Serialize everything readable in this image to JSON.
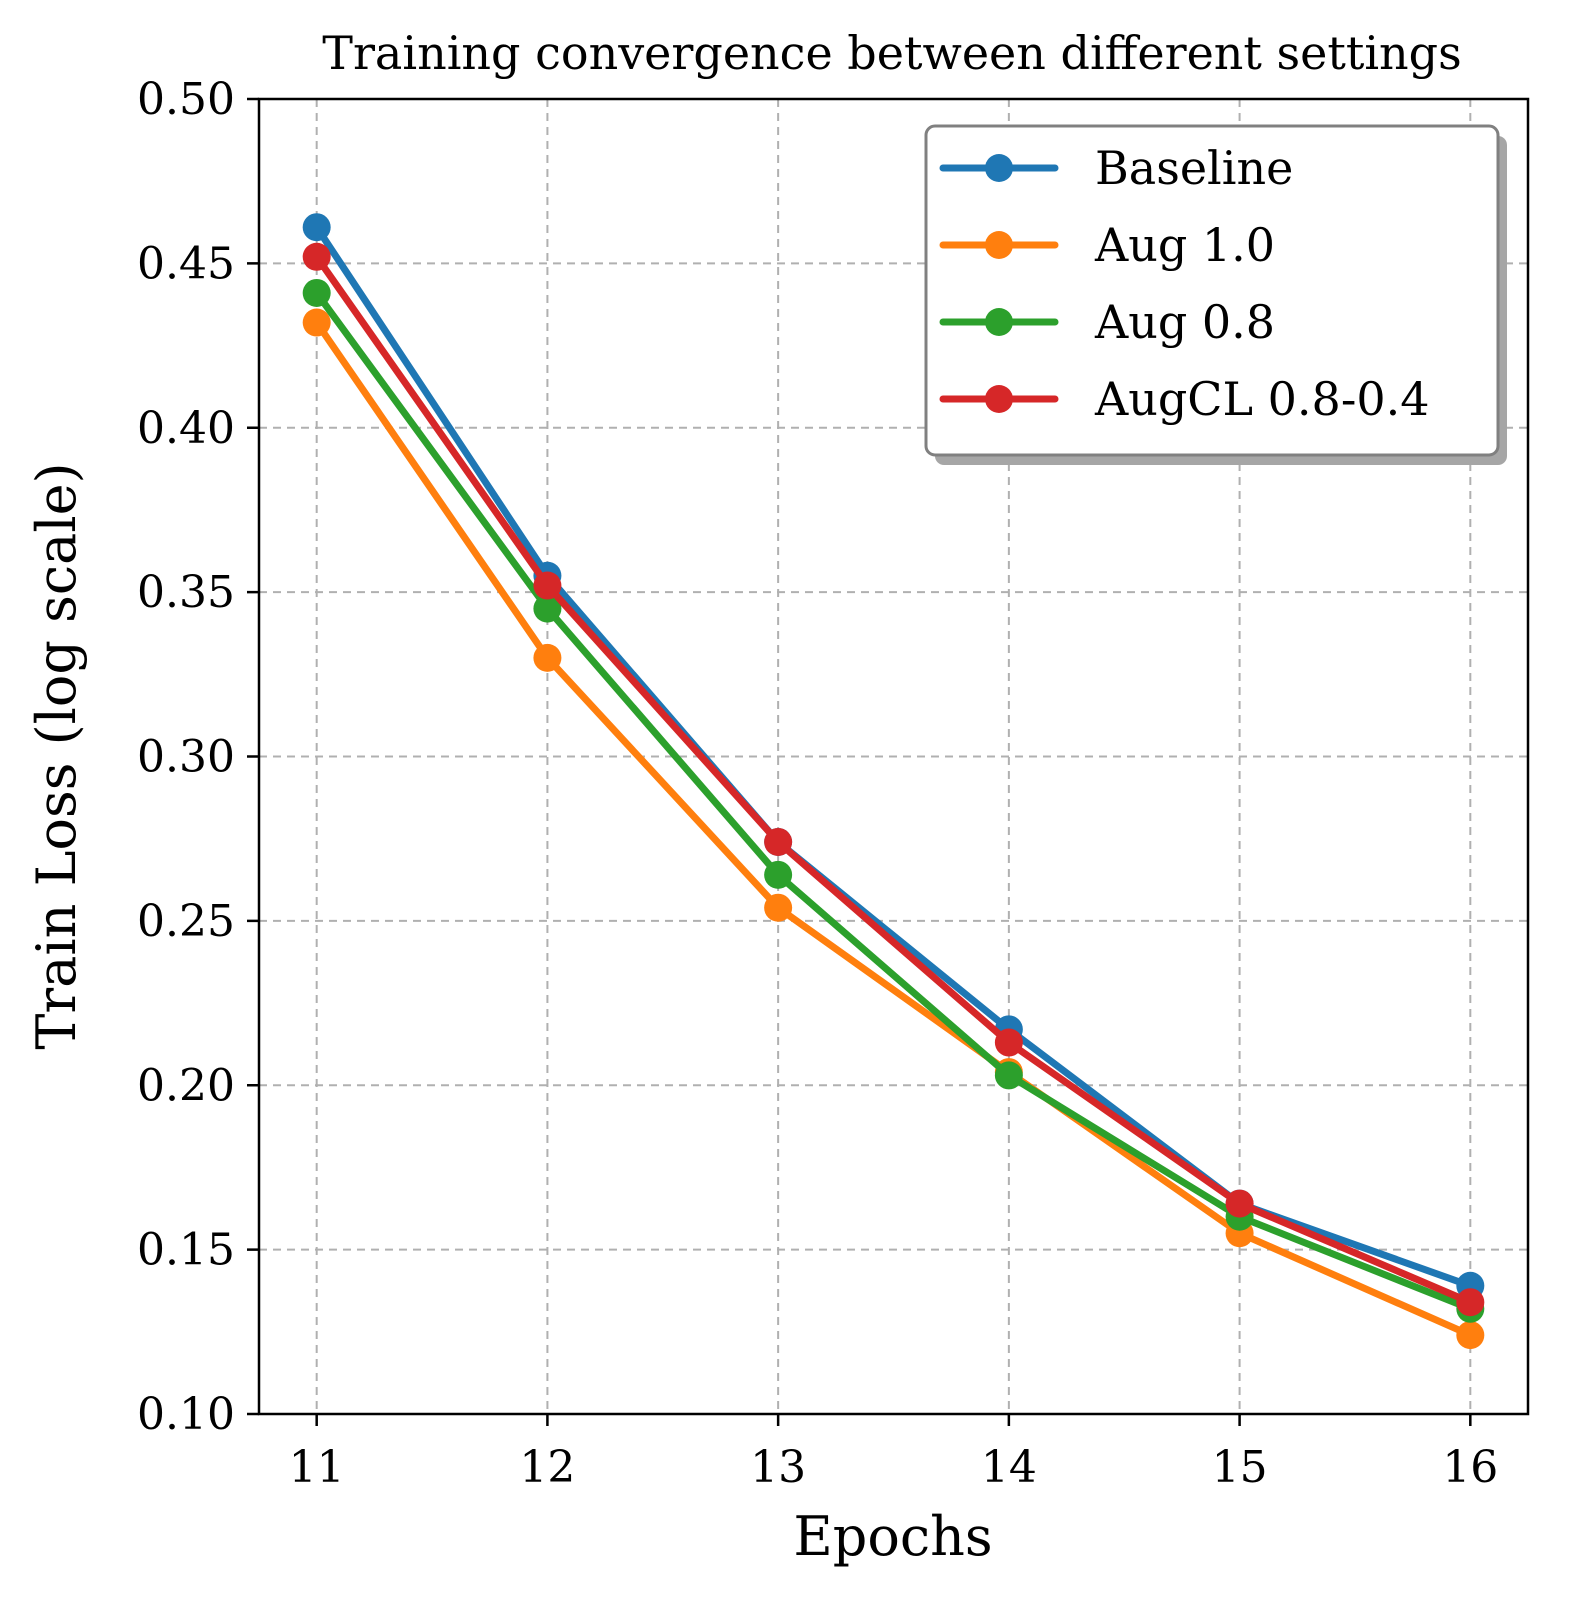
{
  "chart_data": {
    "type": "line",
    "title": "Training convergence between different settings",
    "xlabel": "Epochs",
    "ylabel": "Train Loss (log scale)",
    "x": [
      11,
      12,
      13,
      14,
      15,
      16
    ],
    "x_ticks": [
      "11",
      "12",
      "13",
      "14",
      "15",
      "16"
    ],
    "ylim": [
      0.1,
      0.5
    ],
    "y_ticks": [
      0.1,
      0.15,
      0.2,
      0.25,
      0.3,
      0.35,
      0.4,
      0.45,
      0.5
    ],
    "y_tick_labels": [
      "0.10",
      "0.15",
      "0.20",
      "0.25",
      "0.30",
      "0.35",
      "0.40",
      "0.45",
      "0.50"
    ],
    "grid": true,
    "legend_position": "top-right",
    "series": [
      {
        "name": "Baseline",
        "color": "#1f77b4",
        "values": [
          0.461,
          0.355,
          0.274,
          0.217,
          0.164,
          0.139
        ]
      },
      {
        "name": "Aug 1.0",
        "color": "#ff7f0e",
        "values": [
          0.432,
          0.33,
          0.254,
          0.204,
          0.155,
          0.124
        ]
      },
      {
        "name": "Aug 0.8",
        "color": "#2ca02c",
        "values": [
          0.441,
          0.345,
          0.264,
          0.203,
          0.16,
          0.132
        ]
      },
      {
        "name": "AugCL 0.8-0.4",
        "color": "#d62728",
        "values": [
          0.452,
          0.352,
          0.274,
          0.213,
          0.164,
          0.134
        ]
      }
    ]
  }
}
